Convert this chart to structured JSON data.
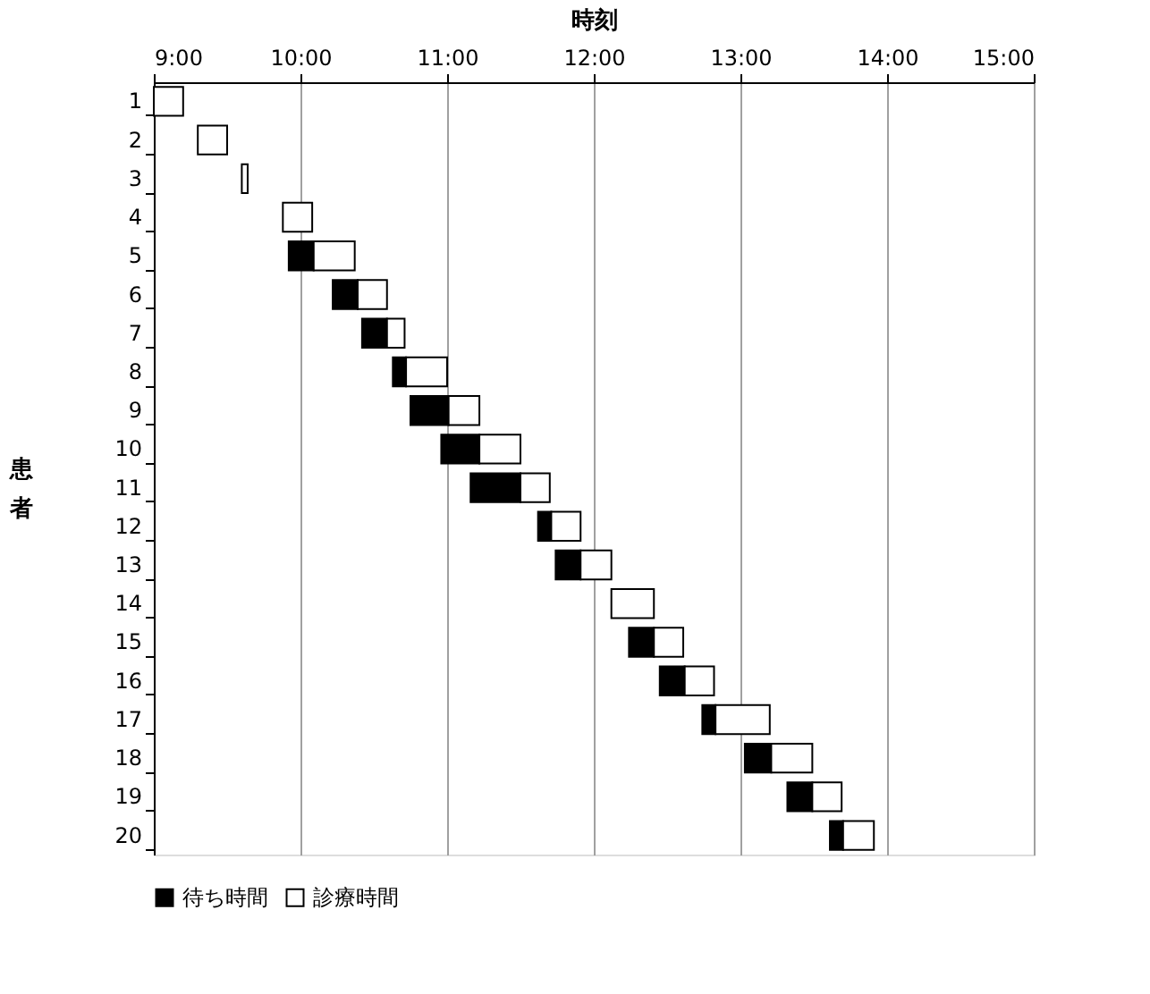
{
  "chart_data": {
    "type": "bar",
    "orientation": "horizontal",
    "xlabel": "時刻",
    "ylabel": "患者",
    "categories": [
      "1",
      "2",
      "3",
      "4",
      "5",
      "6",
      "7",
      "8",
      "9",
      "10",
      "11",
      "12",
      "13",
      "14",
      "15",
      "16",
      "17",
      "18",
      "19",
      "20"
    ],
    "series": [
      {
        "name": "待ち時間",
        "color": "#000000",
        "base": [
          null,
          null,
          null,
          null,
          9.92,
          10.22,
          10.42,
          10.63,
          10.75,
          10.96,
          11.16,
          11.62,
          11.74,
          null,
          12.24,
          12.45,
          12.74,
          13.03,
          13.32,
          13.61
        ],
        "values": [
          null,
          null,
          null,
          null,
          0.17,
          0.17,
          0.17,
          0.09,
          0.26,
          0.26,
          0.34,
          0.09,
          0.17,
          null,
          0.17,
          0.17,
          0.09,
          0.18,
          0.17,
          0.09
        ]
      },
      {
        "name": "診療時間",
        "color": "#ffffff",
        "base": [
          9.0,
          9.3,
          9.6,
          9.88,
          10.09,
          10.39,
          10.59,
          10.72,
          11.01,
          11.22,
          11.5,
          11.71,
          11.91,
          12.12,
          12.41,
          12.62,
          12.83,
          13.21,
          13.49,
          13.7
        ],
        "values": [
          0.2,
          0.2,
          0.04,
          0.2,
          0.28,
          0.2,
          0.12,
          0.28,
          0.21,
          0.28,
          0.2,
          0.2,
          0.21,
          0.29,
          0.2,
          0.2,
          0.37,
          0.28,
          0.2,
          0.21
        ]
      }
    ],
    "xlim": [
      9,
      15
    ],
    "xticks": [
      {
        "value": 9,
        "label": "9:00"
      },
      {
        "value": 10,
        "label": "10:00"
      },
      {
        "value": 11,
        "label": "11:00"
      },
      {
        "value": 12,
        "label": "12:00"
      },
      {
        "value": 13,
        "label": "13:00"
      },
      {
        "value": 14,
        "label": "14:00"
      },
      {
        "value": 15,
        "label": "15:00"
      }
    ],
    "grid": "x",
    "legend": "bottom"
  }
}
